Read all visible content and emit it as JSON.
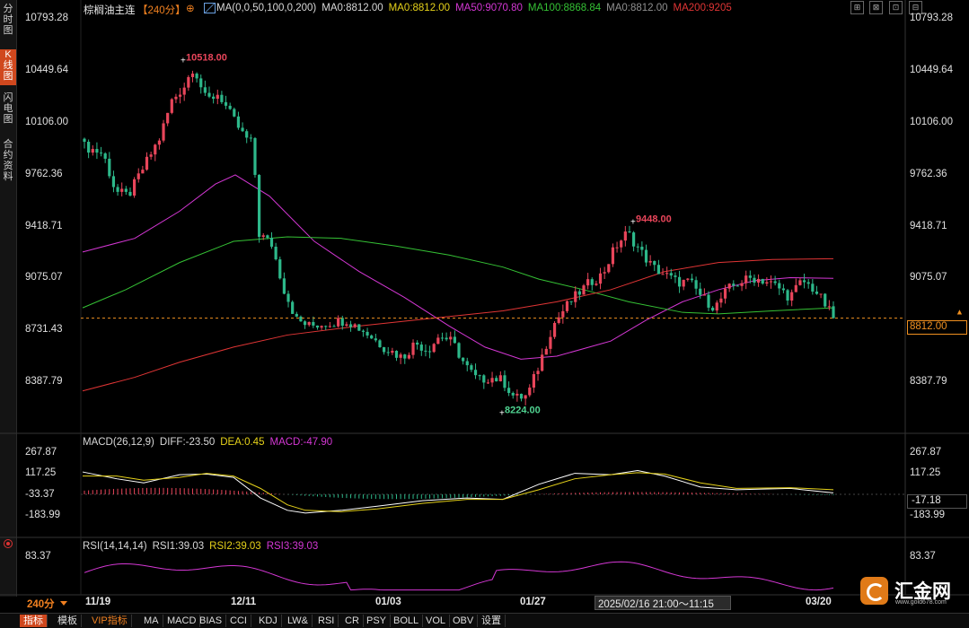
{
  "toolbar": {
    "symbol": "棕榈油主连",
    "period": "【240分】",
    "settings_glyph": "⊕",
    "ma_items": [
      {
        "label": "MA(0,0,50,100,0,200)",
        "color": "#d8d8d8"
      },
      {
        "label": "MA0:8812.00",
        "color": "#d8d8d8"
      },
      {
        "label": "MA0:8812.00",
        "color": "#e6d21a"
      },
      {
        "label": "MA50:9070.80",
        "color": "#d437d4"
      },
      {
        "label": "MA100:8868.84",
        "color": "#35c235"
      },
      {
        "label": "MA0:8812.00",
        "color": "#909090"
      },
      {
        "label": "MA200:9205",
        "color": "#e03535"
      }
    ],
    "window_buttons": [
      "⊞",
      "⊠",
      "⊡",
      "⊟"
    ]
  },
  "sidebar": {
    "tabs": [
      {
        "label": "分时图",
        "active": false
      },
      {
        "label": "K线图",
        "active": true
      },
      {
        "label": "闪电图",
        "active": false
      },
      {
        "label": "合约资料",
        "active": false
      }
    ]
  },
  "price_axis": {
    "ticks": [
      "10793.28",
      "10449.64",
      "10106.00",
      "9762.36",
      "9418.71",
      "9075.07",
      "8731.43",
      "8387.79"
    ]
  },
  "current_price": {
    "value": "8812.00"
  },
  "annotations": {
    "high": "10518.00",
    "mid_high": "9448.00",
    "low": "8224.00"
  },
  "macd": {
    "header": [
      {
        "label": "MACD(26,12,9)",
        "color": "#d8d8d8"
      },
      {
        "label": "DIFF:-23.50",
        "color": "#d8d8d8"
      },
      {
        "label": "DEA:0.45",
        "color": "#e6d21a"
      },
      {
        "label": "MACD:-47.90",
        "color": "#d437d4"
      }
    ],
    "ticks": [
      "267.87",
      "117.25",
      "-33.37",
      "-183.99"
    ],
    "right_value": "-17.18"
  },
  "rsi": {
    "header": [
      {
        "label": "RSI(14,14,14)",
        "color": "#d8d8d8"
      },
      {
        "label": "RSI1:39.03",
        "color": "#d8d8d8"
      },
      {
        "label": "RSI2:39.03",
        "color": "#e6d21a"
      },
      {
        "label": "RSI3:39.03",
        "color": "#d437d4"
      }
    ],
    "ticks": [
      "83.37"
    ]
  },
  "time_axis": {
    "period_label": "240分",
    "dates": [
      "11/19",
      "12/11",
      "01/03",
      "01/27",
      "03/20"
    ],
    "cursor_time": "2025/02/16 21:00～11:15"
  },
  "bottom_tabs": [
    "指标",
    "模板",
    "VIP指标",
    "MA",
    "MACD",
    "BIAS",
    "CCI",
    "KDJ",
    "LW&",
    "RSI",
    "CR",
    "PSY",
    "BOLL",
    "VOL",
    "OBV",
    "设置"
  ],
  "logo": {
    "text": "汇金网",
    "url_text": "www.gold678.com"
  },
  "chart_data": {
    "type": "candlestick",
    "price_ylim": [
      8224,
      10518
    ],
    "candles": [],
    "ma50_color": "#d437d4",
    "ma100_color": "#35c235",
    "ma200_color": "#e03535"
  }
}
